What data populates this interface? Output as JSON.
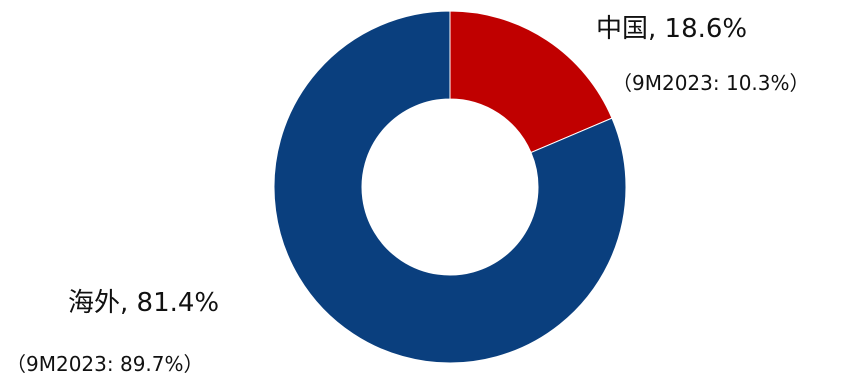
{
  "chart_data": {
    "type": "pie",
    "variant": "donut",
    "categories": [
      "中国",
      "海外"
    ],
    "values": [
      18.6,
      81.4
    ],
    "unit": "%",
    "colors": [
      "#C00000",
      "#0A3F7E"
    ],
    "data_labels": [
      {
        "main": "中国, 18.6%",
        "sub": "（9M2023: 10.3%）"
      },
      {
        "main": "海外, 81.4%",
        "sub": "（9M2023: 89.7%）"
      }
    ],
    "comparison": {
      "period": "9M2023",
      "values": [
        10.3,
        89.7
      ]
    }
  }
}
